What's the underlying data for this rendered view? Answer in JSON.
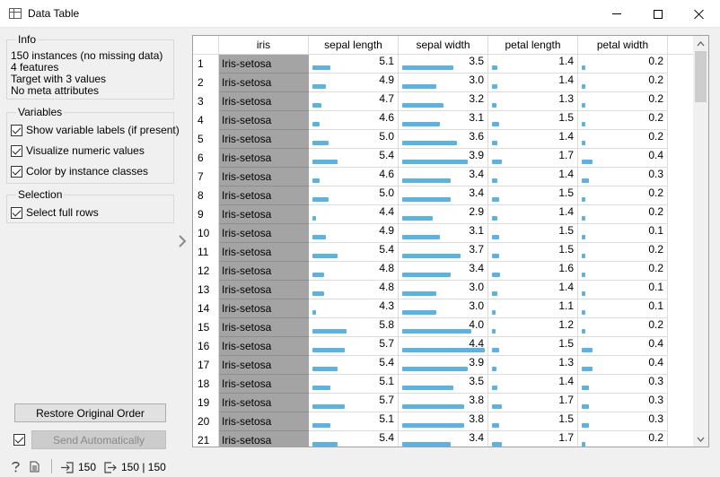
{
  "window": {
    "title": "Data Table"
  },
  "info": {
    "title": "Info",
    "lines": [
      "150 instances (no missing data)",
      "4 features",
      "Target with 3 values",
      "No meta attributes"
    ]
  },
  "variables": {
    "title": "Variables",
    "show_labels": "Show variable labels (if present)",
    "visualize": "Visualize numeric values",
    "color_by_class": "Color by instance classes"
  },
  "selection": {
    "title": "Selection",
    "select_full_rows": "Select full rows"
  },
  "buttons": {
    "restore": "Restore Original Order",
    "send_auto": "Send Automatically"
  },
  "table": {
    "columns": [
      "iris",
      "sepal length",
      "sepal width",
      "petal length",
      "petal width"
    ],
    "rows": [
      [
        "Iris-setosa",
        "5.1",
        "3.5",
        "1.4",
        "0.2"
      ],
      [
        "Iris-setosa",
        "4.9",
        "3.0",
        "1.4",
        "0.2"
      ],
      [
        "Iris-setosa",
        "4.7",
        "3.2",
        "1.3",
        "0.2"
      ],
      [
        "Iris-setosa",
        "4.6",
        "3.1",
        "1.5",
        "0.2"
      ],
      [
        "Iris-setosa",
        "5.0",
        "3.6",
        "1.4",
        "0.2"
      ],
      [
        "Iris-setosa",
        "5.4",
        "3.9",
        "1.7",
        "0.4"
      ],
      [
        "Iris-setosa",
        "4.6",
        "3.4",
        "1.4",
        "0.3"
      ],
      [
        "Iris-setosa",
        "5.0",
        "3.4",
        "1.5",
        "0.2"
      ],
      [
        "Iris-setosa",
        "4.4",
        "2.9",
        "1.4",
        "0.2"
      ],
      [
        "Iris-setosa",
        "4.9",
        "3.1",
        "1.5",
        "0.1"
      ],
      [
        "Iris-setosa",
        "5.4",
        "3.7",
        "1.5",
        "0.2"
      ],
      [
        "Iris-setosa",
        "4.8",
        "3.4",
        "1.6",
        "0.2"
      ],
      [
        "Iris-setosa",
        "4.8",
        "3.0",
        "1.4",
        "0.1"
      ],
      [
        "Iris-setosa",
        "4.3",
        "3.0",
        "1.1",
        "0.1"
      ],
      [
        "Iris-setosa",
        "5.8",
        "4.0",
        "1.2",
        "0.2"
      ],
      [
        "Iris-setosa",
        "5.7",
        "4.4",
        "1.5",
        "0.4"
      ],
      [
        "Iris-setosa",
        "5.4",
        "3.9",
        "1.3",
        "0.4"
      ],
      [
        "Iris-setosa",
        "5.1",
        "3.5",
        "1.4",
        "0.3"
      ],
      [
        "Iris-setosa",
        "5.7",
        "3.8",
        "1.7",
        "0.3"
      ],
      [
        "Iris-setosa",
        "5.1",
        "3.8",
        "1.5",
        "0.3"
      ],
      [
        "Iris-setosa",
        "5.4",
        "3.4",
        "1.7",
        "0.2"
      ]
    ],
    "ranges": [
      [
        4.3,
        7.9
      ],
      [
        2.0,
        4.4
      ],
      [
        1.0,
        6.9
      ],
      [
        0.1,
        2.5
      ]
    ],
    "bar_color": "#5ab3e2",
    "class_cell_color": "#a4a4a4"
  },
  "status": {
    "input_count": "150",
    "output_count": "150 | 150"
  }
}
